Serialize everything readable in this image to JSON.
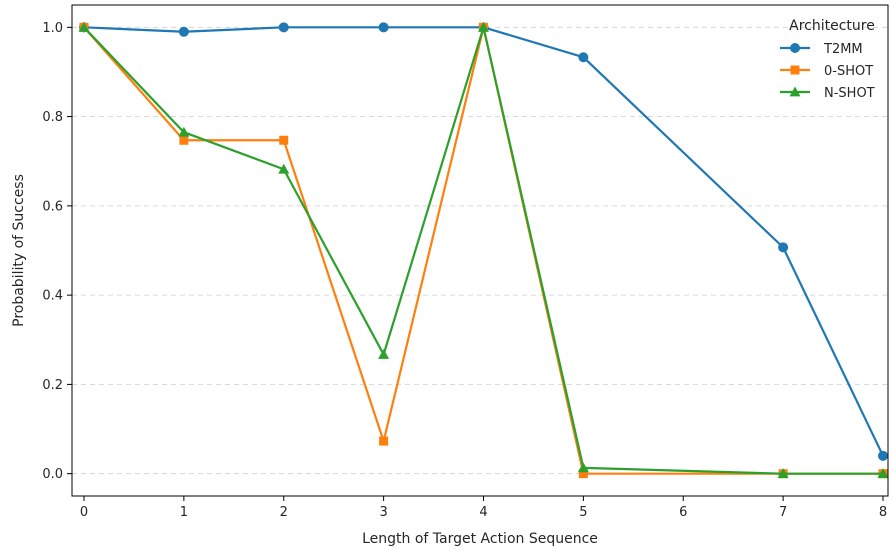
{
  "chart_data": {
    "type": "line",
    "title": "",
    "xlabel": "Length of Target Action Sequence",
    "ylabel": "Probability of Success",
    "x": [
      0,
      1,
      2,
      3,
      4,
      5,
      6,
      7,
      8
    ],
    "xticks": [
      "0",
      "1",
      "2",
      "3",
      "4",
      "5",
      "6",
      "7",
      "8"
    ],
    "yticks": [
      "0.0",
      "0.2",
      "0.4",
      "0.6",
      "0.8",
      "1.0"
    ],
    "ytick_values": [
      0.0,
      0.2,
      0.4,
      0.6,
      0.8,
      1.0
    ],
    "xlim": [
      -0.12,
      8.05
    ],
    "ylim": [
      -0.05,
      1.05
    ],
    "grid": "horizontal dashed",
    "legend": {
      "title": "Architecture",
      "placement": "top-right"
    },
    "series": [
      {
        "name": "T2MM",
        "color": "#1f77b4",
        "marker": "circle",
        "points": [
          [
            0,
            1.0
          ],
          [
            1,
            0.99
          ],
          [
            2,
            1.0
          ],
          [
            3,
            1.0
          ],
          [
            4,
            1.0
          ],
          [
            5,
            0.933
          ],
          [
            7,
            0.507
          ],
          [
            8,
            0.04
          ]
        ]
      },
      {
        "name": "0-SHOT",
        "color": "#ff7f0e",
        "marker": "square",
        "points": [
          [
            0,
            1.0
          ],
          [
            1,
            0.747
          ],
          [
            2,
            0.747
          ],
          [
            3,
            0.073
          ],
          [
            4,
            1.0
          ],
          [
            5,
            0.0
          ],
          [
            7,
            0.0
          ],
          [
            8,
            0.0
          ]
        ]
      },
      {
        "name": "N-SHOT",
        "color": "#2ca02c",
        "marker": "triangle",
        "points": [
          [
            0,
            1.0
          ],
          [
            1,
            0.765
          ],
          [
            2,
            0.682
          ],
          [
            3,
            0.267
          ],
          [
            4,
            1.0
          ],
          [
            5,
            0.013
          ],
          [
            7,
            0.0
          ],
          [
            8,
            0.0
          ]
        ]
      }
    ]
  }
}
